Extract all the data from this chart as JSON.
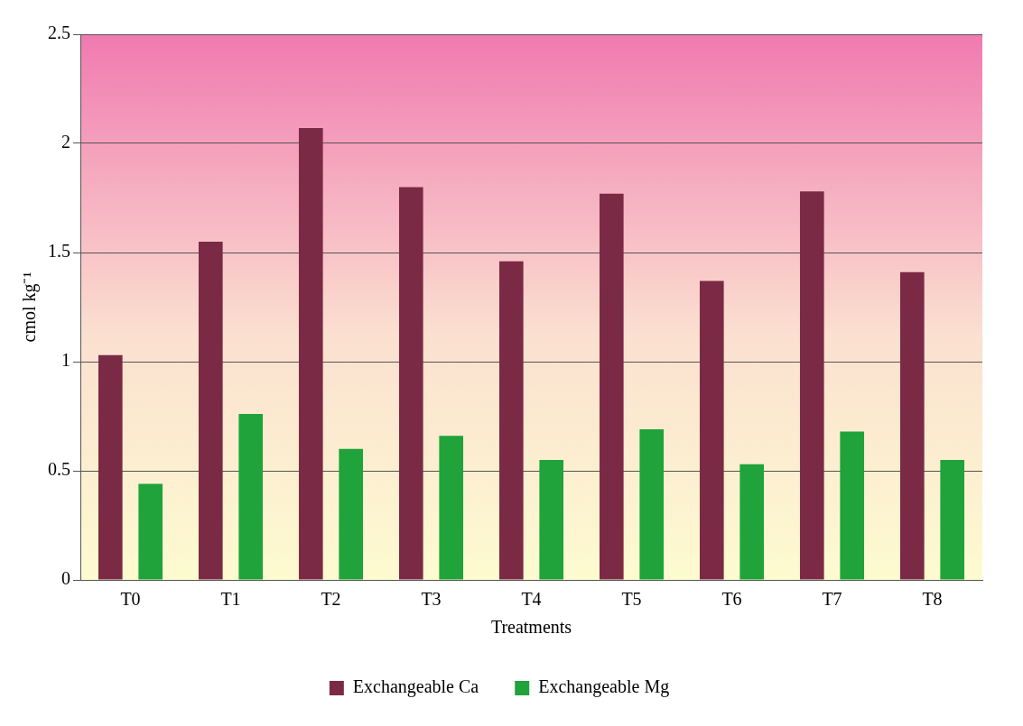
{
  "chart_data": {
    "type": "bar",
    "xlabel": "Treatments",
    "ylabel": "cmol kg⁻¹",
    "categories": [
      "T0",
      "T1",
      "T2",
      "T3",
      "T4",
      "T5",
      "T6",
      "T7",
      "T8"
    ],
    "series": [
      {
        "name": "Exchangeable Ca",
        "color": "#7b2a45",
        "values": [
          1.03,
          1.55,
          2.07,
          1.8,
          1.46,
          1.77,
          1.37,
          1.78,
          1.41
        ]
      },
      {
        "name": "Exchangeable Mg",
        "color": "#1fa33a",
        "values": [
          0.44,
          0.76,
          0.6,
          0.66,
          0.55,
          0.69,
          0.53,
          0.68,
          0.55
        ]
      }
    ],
    "ylim": [
      0,
      2.5
    ],
    "yticks": [
      0,
      0.5,
      1,
      1.5,
      2,
      2.5
    ],
    "grid": "y",
    "legend": "bottom"
  }
}
